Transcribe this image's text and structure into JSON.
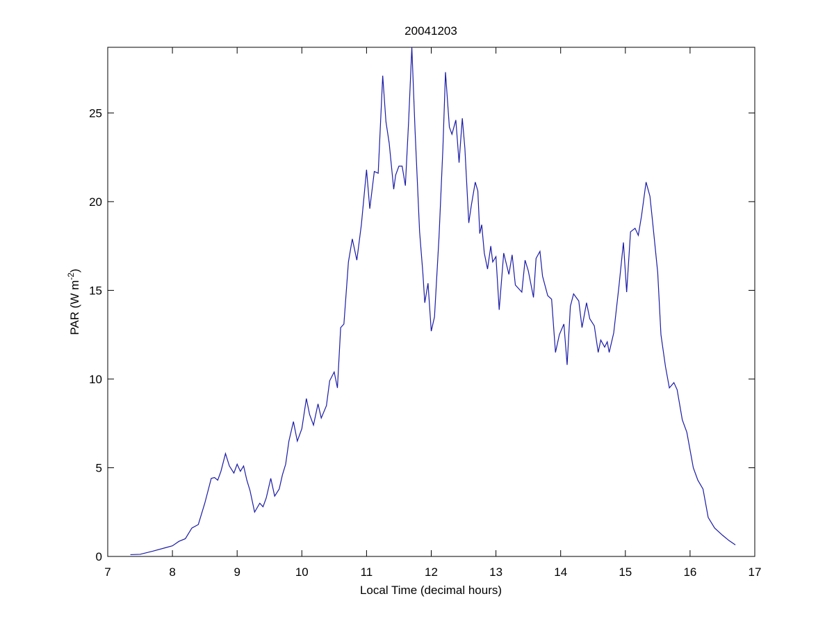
{
  "chart_data": {
    "type": "line",
    "title": "20041203",
    "x_label": "Local Time (decimal hours)",
    "y_label": [
      "PAR (W m",
      "-2",
      ")"
    ],
    "xlim": [
      7,
      17
    ],
    "ylim": [
      0,
      28.7
    ],
    "xticks": [
      7,
      8,
      9,
      10,
      11,
      12,
      13,
      14,
      15,
      16,
      17
    ],
    "yticks": [
      0,
      5,
      10,
      15,
      20,
      25
    ],
    "grid": false,
    "series": [
      {
        "color": "#1a1aa6",
        "x": [
          7.35,
          7.5,
          7.7,
          7.9,
          8.0,
          8.1,
          8.2,
          8.3,
          8.4,
          8.5,
          8.6,
          8.65,
          8.7,
          8.75,
          8.82,
          8.88,
          8.95,
          9.0,
          9.05,
          9.1,
          9.15,
          9.2,
          9.27,
          9.35,
          9.4,
          9.45,
          9.52,
          9.58,
          9.65,
          9.7,
          9.75,
          9.8,
          9.87,
          9.93,
          10.0,
          10.07,
          10.12,
          10.18,
          10.25,
          10.3,
          10.38,
          10.43,
          10.5,
          10.55,
          10.6,
          10.65,
          10.72,
          10.78,
          10.85,
          10.92,
          11.0,
          11.05,
          11.12,
          11.18,
          11.25,
          11.3,
          11.35,
          11.42,
          11.45,
          11.5,
          11.55,
          11.6,
          11.65,
          11.7,
          11.75,
          11.82,
          11.87,
          11.9,
          11.95,
          12.0,
          12.05,
          12.12,
          12.18,
          12.22,
          12.28,
          12.32,
          12.38,
          12.43,
          12.48,
          12.52,
          12.58,
          12.62,
          12.68,
          12.72,
          12.75,
          12.78,
          12.82,
          12.87,
          12.92,
          12.95,
          13.0,
          13.05,
          13.12,
          13.2,
          13.25,
          13.3,
          13.4,
          13.45,
          13.5,
          13.58,
          13.62,
          13.68,
          13.72,
          13.8,
          13.86,
          13.92,
          13.98,
          14.05,
          14.1,
          14.15,
          14.2,
          14.28,
          14.33,
          14.4,
          14.45,
          14.52,
          14.58,
          14.62,
          14.68,
          14.72,
          14.75,
          14.82,
          14.9,
          14.97,
          15.02,
          15.08,
          15.15,
          15.2,
          15.25,
          15.32,
          15.38,
          15.42,
          15.5,
          15.55,
          15.62,
          15.68,
          15.75,
          15.8,
          15.88,
          15.95,
          16.05,
          16.12,
          16.2,
          16.28,
          16.38,
          16.5,
          16.6,
          16.7
        ],
        "values": [
          0.1,
          0.12,
          0.3,
          0.5,
          0.6,
          0.85,
          1.0,
          1.6,
          1.8,
          3.0,
          4.4,
          4.45,
          4.3,
          4.8,
          5.8,
          5.1,
          4.7,
          5.2,
          4.8,
          5.1,
          4.3,
          3.7,
          2.5,
          3.0,
          2.8,
          3.3,
          4.4,
          3.4,
          3.8,
          4.6,
          5.2,
          6.5,
          7.6,
          6.5,
          7.2,
          8.9,
          8.0,
          7.4,
          8.6,
          7.8,
          8.5,
          9.9,
          10.4,
          9.5,
          12.9,
          13.1,
          16.6,
          17.9,
          16.7,
          18.7,
          21.8,
          19.6,
          21.7,
          21.6,
          27.1,
          24.5,
          23.3,
          20.7,
          21.5,
          22,
          22,
          20.9,
          24.5,
          28.7,
          24,
          18.3,
          16,
          14.3,
          15.4,
          12.7,
          13.5,
          18,
          23,
          27.3,
          24.2,
          23.8,
          24.6,
          22.2,
          24.7,
          23,
          18.8,
          19.8,
          21.1,
          20.6,
          18.2,
          18.7,
          17.1,
          16.2,
          17.5,
          16.6,
          16.9,
          13.9,
          17.1,
          15.9,
          17,
          15.3,
          14.9,
          16.7,
          16.1,
          14.6,
          16.8,
          17.2,
          15.8,
          14.7,
          14.5,
          11.5,
          12.5,
          13.1,
          10.8,
          14.1,
          14.8,
          14.4,
          12.9,
          14.3,
          13.4,
          13.0,
          11.5,
          12.2,
          11.8,
          12.1,
          11.5,
          12.6,
          15.2,
          17.7,
          14.9,
          18.3,
          18.5,
          18.1,
          19.2,
          21.1,
          20.3,
          18.9,
          16,
          12.5,
          10.7,
          9.5,
          9.8,
          9.4,
          7.7,
          7.0,
          5.0,
          4.3,
          3.8,
          2.2,
          1.6,
          1.2,
          0.9,
          0.65
        ]
      }
    ]
  }
}
